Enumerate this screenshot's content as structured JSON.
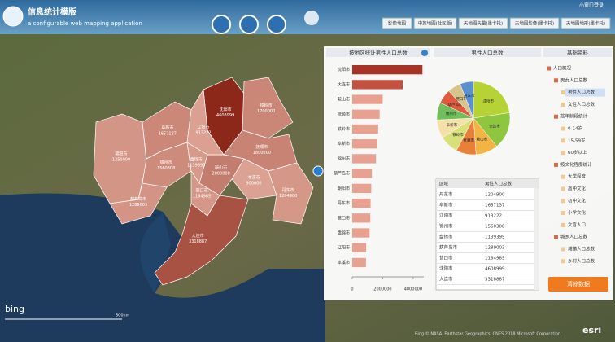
{
  "header": {
    "title": "信息统计模版",
    "subtitle": "a configurable web mapping application",
    "login": "小窗口登录"
  },
  "buttons": [
    "影像地图",
    "中英地图(社区版)",
    "天地图矢量(墨卡托)",
    "天地图影像(墨卡托)",
    "天地图地形(墨卡托)"
  ],
  "map": {
    "regions": [
      {
        "name": "朝阳市",
        "value": 1250000
      },
      {
        "name": "阜新市",
        "value": 1657137
      },
      {
        "name": "沈阳市",
        "value": 4608999
      },
      {
        "name": "铁岭市",
        "value": 1700000
      },
      {
        "name": "抚顺市",
        "value": 1800000
      },
      {
        "name": "本溪市",
        "value": 900000
      },
      {
        "name": "丹东市",
        "value": 1204900
      },
      {
        "name": "鞍山市",
        "value": 2000000
      },
      {
        "name": "辽阳市",
        "value": 913222
      },
      {
        "name": "锦州市",
        "value": 1560308
      },
      {
        "name": "盘锦市",
        "value": 1139395
      },
      {
        "name": "葫芦岛市",
        "value": 1289003
      },
      {
        "name": "营口市",
        "value": 1184985
      },
      {
        "name": "大连市",
        "value": 3318887
      }
    ],
    "logo": "bing",
    "scale": "500km",
    "brand": "esri",
    "attribution": "Bing © NASA, Earthstar Geographics, CNES 2018 Microsoft Corporation"
  },
  "chart_data": [
    {
      "type": "bar",
      "title": "按地区统计男性人口总数",
      "categories": [
        "沈阳市",
        "大连市",
        "鞍山市",
        "抚顺市",
        "铁岭市",
        "阜新市",
        "锦州市",
        "葫芦岛市",
        "朝阳市",
        "丹东市",
        "营口市",
        "盘锦市",
        "辽阳市",
        "本溪市"
      ],
      "values": [
        4608999,
        3318887,
        2000000,
        1800000,
        1700000,
        1657137,
        1560308,
        1289003,
        1250000,
        1204900,
        1184985,
        1139395,
        913222,
        900000
      ],
      "color": "#e8a090",
      "highlight_colors": [
        "#a83226",
        "#c4503f"
      ],
      "xlim": [
        0,
        4700000
      ],
      "xticks": [
        0,
        2000000,
        4000000
      ]
    },
    {
      "type": "pie",
      "title": "男性人口总数",
      "categories": [
        "沈阳市",
        "大连市",
        "鞍山市",
        "抚顺市",
        "铁岭市",
        "阜新市",
        "锦州市",
        "葫芦岛市",
        "营口市",
        "丹东市"
      ],
      "values": [
        4608999,
        3318887,
        2000000,
        1800000,
        1700000,
        1657137,
        1560308,
        1289003,
        1184985,
        1204900
      ],
      "colors": [
        "#b5d334",
        "#8fc63f",
        "#f2b544",
        "#e8803a",
        "#d7e07a",
        "#f5e0a8",
        "#6fbf5a",
        "#e05a3e",
        "#d6c48a",
        "#5a8fd0"
      ]
    }
  ],
  "table": {
    "columns": [
      "区域",
      "男性人口总数"
    ],
    "rows": [
      [
        "丹东市",
        "1204900"
      ],
      [
        "阜新市",
        "1657137"
      ],
      [
        "辽阳市",
        "913222"
      ],
      [
        "锦州市",
        "1560308"
      ],
      [
        "盘锦市",
        "1139395"
      ],
      [
        "葫芦岛市",
        "1289003"
      ],
      [
        "营口市",
        "1184985"
      ],
      [
        "沈阳市",
        "4608999"
      ],
      [
        "大连市",
        "3318887"
      ]
    ]
  },
  "sidebar": {
    "title": "基础资料",
    "tree": [
      {
        "label": "人口概况",
        "level": 0
      },
      {
        "label": "男女人口总数",
        "level": 1
      },
      {
        "label": "男性人口总数",
        "level": 2
      },
      {
        "label": "女性人口总数",
        "level": 2
      },
      {
        "label": "按年龄段统计",
        "level": 1
      },
      {
        "label": "0-14岁",
        "level": 2
      },
      {
        "label": "15-59岁",
        "level": 2
      },
      {
        "label": "60岁以上",
        "level": 2
      },
      {
        "label": "按文化程度统计",
        "level": 1
      },
      {
        "label": "大学程度",
        "level": 2
      },
      {
        "label": "高中文化",
        "level": 2
      },
      {
        "label": "初中文化",
        "level": 2
      },
      {
        "label": "小学文化",
        "level": 2
      },
      {
        "label": "文盲人口",
        "level": 2
      },
      {
        "label": "城乡人口总数",
        "level": 1
      },
      {
        "label": "城镇人口总数",
        "level": 2
      },
      {
        "label": "乡村人口总数",
        "level": 2
      }
    ],
    "button": "清除数据"
  }
}
